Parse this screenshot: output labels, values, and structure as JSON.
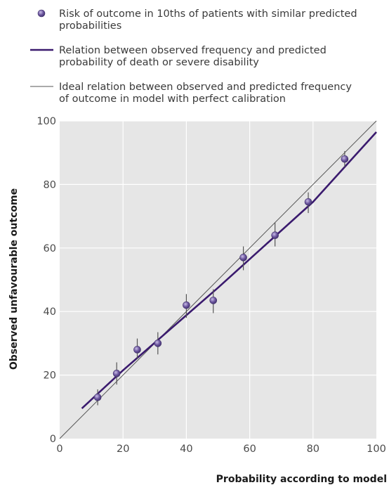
{
  "legend": [
    {
      "marker": "point",
      "lines": [
        "Risk of outcome in 10ths of patients with similar predicted",
        "probabilities"
      ]
    },
    {
      "marker": "fit-line",
      "lines": [
        "Relation between observed frequency and predicted",
        "probability of death or severe disability"
      ]
    },
    {
      "marker": "ideal-line",
      "lines": [
        "Ideal relation between observed and predicted frequency",
        "of outcome in model with perfect calibration"
      ]
    }
  ],
  "chart_data": {
    "type": "scatter",
    "title": "",
    "xlabel": "Probability according to model",
    "ylabel": "Observed unfavourable outcome",
    "xlim": [
      0,
      100
    ],
    "ylim": [
      0,
      100
    ],
    "xticks": [
      0,
      20,
      40,
      60,
      80,
      100
    ],
    "yticks": [
      0,
      20,
      40,
      60,
      80,
      100
    ],
    "grid": true,
    "legend_position": "top",
    "points": [
      {
        "x": 12,
        "y": 13,
        "lo": 10.5,
        "hi": 15.5
      },
      {
        "x": 18,
        "y": 20.5,
        "lo": 17,
        "hi": 24
      },
      {
        "x": 24.5,
        "y": 28,
        "lo": 25,
        "hi": 31.5
      },
      {
        "x": 31,
        "y": 30,
        "lo": 26.5,
        "hi": 33.5
      },
      {
        "x": 40,
        "y": 42,
        "lo": 38,
        "hi": 45.5
      },
      {
        "x": 48.5,
        "y": 43.5,
        "lo": 39.5,
        "hi": 47
      },
      {
        "x": 58,
        "y": 57,
        "lo": 53,
        "hi": 60.5
      },
      {
        "x": 68,
        "y": 64,
        "lo": 60.5,
        "hi": 68
      },
      {
        "x": 78.5,
        "y": 74.5,
        "lo": 71,
        "hi": 77.5
      },
      {
        "x": 90,
        "y": 88,
        "lo": 85.5,
        "hi": 90.5
      }
    ],
    "fit_line": {
      "x": [
        7,
        20,
        35,
        50,
        65,
        80,
        100
      ],
      "y": [
        9.5,
        21.5,
        34.5,
        47.5,
        61,
        74.5,
        96.5
      ]
    },
    "ideal_line": {
      "x": [
        0,
        100
      ],
      "y": [
        0,
        100
      ]
    },
    "colors": {
      "point": "#6b559e",
      "point_highlight": "#c9bde6",
      "fit_line": "#3a1a6e",
      "ideal_line": "#555555",
      "plot_bg": "#e6e6e6",
      "grid": "#ffffff"
    }
  }
}
